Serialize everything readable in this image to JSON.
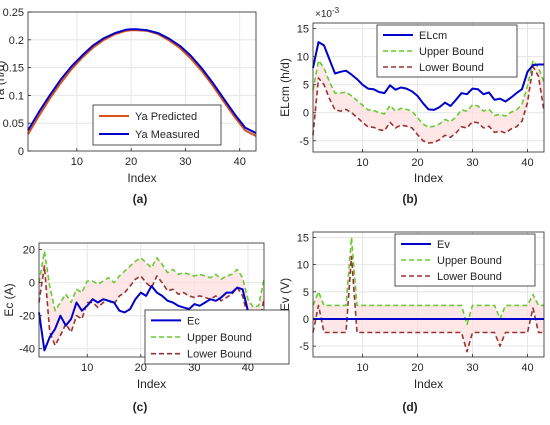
{
  "figure": {
    "colors": {
      "red": "#d95319",
      "blue": "#0000cc",
      "green": "#66cc33",
      "darkred": "#993333",
      "axis": "#262626",
      "grid": "#e6e6e6",
      "fill": "#ffdddd"
    }
  },
  "chart_data": [
    {
      "panel_label": "(a)",
      "type": "line",
      "xlabel": "Index",
      "ylabel": "Ya (h/d)",
      "xlim": [
        1,
        43
      ],
      "ylim": [
        0,
        0.25
      ],
      "xticks": [
        10,
        20,
        30,
        40
      ],
      "yticks": [
        0,
        0.05,
        0.1,
        0.15,
        0.2,
        0.25
      ],
      "ytick_labels": [
        "0",
        "0.05",
        "0.1",
        "0.15",
        "0.2",
        "0.25"
      ],
      "grid": true,
      "legend_position": "bottom-center",
      "x": [
        1,
        3,
        5,
        7,
        9,
        11,
        13,
        15,
        17,
        19,
        20,
        21,
        23,
        25,
        27,
        29,
        31,
        33,
        35,
        37,
        39,
        41,
        43
      ],
      "series": [
        {
          "name": "Ya Predicted",
          "color_key": "red",
          "width": 2,
          "values": [
            0.03,
            0.063,
            0.094,
            0.122,
            0.147,
            0.168,
            0.186,
            0.2,
            0.21,
            0.216,
            0.217,
            0.217,
            0.216,
            0.21,
            0.199,
            0.185,
            0.166,
            0.144,
            0.118,
            0.09,
            0.062,
            0.037,
            0.027
          ]
        },
        {
          "name": "Ya Measured",
          "color_key": "blue",
          "width": 2,
          "values": [
            0.037,
            0.07,
            0.1,
            0.128,
            0.152,
            0.172,
            0.19,
            0.203,
            0.212,
            0.218,
            0.219,
            0.219,
            0.217,
            0.212,
            0.202,
            0.189,
            0.171,
            0.149,
            0.123,
            0.095,
            0.067,
            0.042,
            0.032
          ]
        }
      ]
    },
    {
      "panel_label": "(b)",
      "type": "line",
      "xlabel": "Index",
      "ylabel": "ELcm (h/d)",
      "exponent_label": "×10",
      "exponent_value": "-3",
      "xlim": [
        1,
        43
      ],
      "ylim": [
        -7,
        16
      ],
      "xticks": [
        10,
        20,
        30,
        40
      ],
      "yticks": [
        -5,
        0,
        5,
        10,
        15
      ],
      "grid": true,
      "legend_position": "top-right",
      "x": [
        1,
        2,
        3,
        4,
        5,
        6,
        7,
        8,
        9,
        10,
        11,
        12,
        13,
        14,
        15,
        16,
        17,
        18,
        19,
        20,
        21,
        22,
        23,
        24,
        25,
        26,
        27,
        28,
        29,
        30,
        31,
        32,
        33,
        34,
        35,
        36,
        37,
        38,
        39,
        40,
        41,
        42,
        43
      ],
      "series": [
        {
          "name": "ELcm",
          "color_key": "blue",
          "width": 2,
          "style": "solid",
          "values": [
            8,
            12.6,
            12,
            9.5,
            7,
            7.3,
            7.5,
            6.8,
            6,
            5,
            4.3,
            4.2,
            3.7,
            3.5,
            4.9,
            4.1,
            4.5,
            4.3,
            3.8,
            3,
            1.7,
            0.6,
            0.5,
            1,
            1.8,
            1.2,
            2.3,
            3.5,
            3.3,
            4.3,
            4.2,
            3.3,
            3.6,
            2.3,
            2.5,
            2,
            2.7,
            3.5,
            4.2,
            7.3,
            8.5,
            8.6,
            8.6
          ]
        },
        {
          "name": "Upper Bound",
          "color_key": "green",
          "width": 1.6,
          "style": "dash",
          "values": [
            4,
            9.3,
            8,
            5.5,
            3.5,
            3.5,
            3.7,
            3,
            2.2,
            1.3,
            0.5,
            0.4,
            0,
            -0.2,
            1.3,
            0.3,
            0.8,
            0.6,
            0.3,
            -0.9,
            -2,
            -2.6,
            -2.4,
            -2,
            -1.2,
            -1.6,
            -0.8,
            0.5,
            0.3,
            1.4,
            1.2,
            0.3,
            0.6,
            -0.5,
            -0.3,
            -0.6,
            0.1,
            0.5,
            1.5,
            4.8,
            9.3,
            8,
            5.5
          ]
        },
        {
          "name": "Lower Bound",
          "color_key": "darkred",
          "width": 1.6,
          "style": "dash",
          "values": [
            -4,
            6.2,
            5,
            2.5,
            0.5,
            0.3,
            0.6,
            0,
            -0.8,
            -1.7,
            -2.5,
            -2.6,
            -3,
            -3.2,
            -1.7,
            -2.7,
            -2.2,
            -2.4,
            -2.7,
            -3.9,
            -5,
            -5.4,
            -5.3,
            -4.8,
            -4,
            -4.4,
            -3.6,
            -2.5,
            -2.7,
            -1.6,
            -1.8,
            -2.7,
            -2.4,
            -3.5,
            -3.3,
            -3.6,
            -2.9,
            -2.5,
            -1.5,
            1.8,
            8.2,
            6.5,
            0.3
          ]
        }
      ]
    },
    {
      "panel_label": "(c)",
      "type": "line",
      "xlabel": "Index",
      "ylabel": "Ec (A)",
      "xlim": [
        1,
        43
      ],
      "ylim": [
        -45,
        24
      ],
      "xticks": [
        10,
        20,
        30,
        40
      ],
      "yticks": [
        -40,
        -20,
        0,
        20
      ],
      "grid": true,
      "legend_position": "bottom-center",
      "x": [
        1,
        2,
        3,
        4,
        5,
        6,
        7,
        8,
        9,
        10,
        11,
        12,
        13,
        14,
        15,
        16,
        17,
        18,
        19,
        20,
        21,
        22,
        23,
        24,
        25,
        26,
        27,
        28,
        29,
        30,
        31,
        32,
        33,
        34,
        35,
        36,
        37,
        38,
        39,
        40,
        41,
        42,
        43
      ],
      "series": [
        {
          "name": "Ec",
          "color_key": "blue",
          "width": 2,
          "style": "solid",
          "values": [
            -18,
            -41,
            -33,
            -28,
            -20,
            -26,
            -22,
            -12,
            -17,
            -14,
            -10,
            -12,
            -10,
            -11,
            -12,
            -17,
            -18,
            -16,
            -10,
            -6,
            -8,
            -2,
            -6,
            -8,
            -11,
            -12,
            -14,
            -15,
            -16,
            -13,
            -14,
            -12,
            -10,
            -11,
            -9,
            -6,
            -6,
            -3,
            -4,
            -17,
            -24,
            -26,
            -26
          ]
        },
        {
          "name": "Upper Bound",
          "color_key": "green",
          "width": 1.6,
          "style": "dash",
          "values": [
            0,
            19,
            -2,
            -17,
            -12,
            -7,
            -12,
            -4,
            -6,
            1,
            1,
            -1,
            1,
            3,
            0,
            4,
            7,
            10,
            13,
            15,
            12,
            9,
            15,
            11,
            6,
            8,
            5,
            6,
            5,
            4,
            5,
            4,
            3,
            5,
            2,
            4,
            5,
            8,
            3,
            -10,
            -15,
            -14,
            2
          ]
        },
        {
          "name": "Lower Bound",
          "color_key": "darkred",
          "width": 1.6,
          "style": "dash",
          "values": [
            -12,
            10,
            -30,
            -38,
            -32,
            -25,
            -30,
            -20,
            -22,
            -12,
            -12,
            -15,
            -12,
            -11,
            -13,
            -8,
            -6,
            -2,
            2,
            4,
            0,
            -3,
            4,
            0,
            -5,
            -4,
            -7,
            -6,
            -8,
            -9,
            -8,
            -9,
            -10,
            -8,
            -11,
            -9,
            -7,
            -3,
            -8,
            -21,
            -28,
            -27,
            -10
          ]
        }
      ]
    },
    {
      "panel_label": "(d)",
      "type": "line",
      "xlabel": "Index",
      "ylabel": "Ev (V)",
      "xlim": [
        1,
        43
      ],
      "ylim": [
        -7,
        16
      ],
      "xticks": [
        10,
        20,
        30,
        40
      ],
      "yticks": [
        -5,
        0,
        5,
        10,
        15
      ],
      "grid": true,
      "legend_position": "top-right",
      "x": [
        1,
        2,
        3,
        4,
        5,
        6,
        7,
        8,
        9,
        10,
        11,
        12,
        13,
        14,
        15,
        16,
        17,
        18,
        19,
        20,
        21,
        22,
        23,
        24,
        25,
        26,
        27,
        28,
        29,
        30,
        31,
        32,
        33,
        34,
        35,
        36,
        37,
        38,
        39,
        40,
        41,
        42,
        43
      ],
      "series": [
        {
          "name": "Ev",
          "color_key": "blue",
          "width": 2,
          "style": "solid",
          "values": [
            0,
            0,
            0,
            0,
            0,
            0,
            0,
            0,
            0,
            0,
            0,
            0,
            0,
            0,
            0,
            0,
            0,
            0,
            0,
            0,
            0,
            0,
            0,
            0,
            0,
            0,
            0,
            0,
            0,
            0,
            0,
            0,
            0,
            0,
            0,
            0,
            0,
            0,
            0,
            0,
            0,
            0,
            0
          ]
        },
        {
          "name": "Upper Bound",
          "color_key": "green",
          "width": 1.6,
          "style": "dash",
          "values": [
            2.5,
            5,
            2.5,
            2.5,
            2.5,
            2.5,
            2.5,
            15,
            2.5,
            2.5,
            2.5,
            2.5,
            2.5,
            2.5,
            2.5,
            2.5,
            2.5,
            2.5,
            2.5,
            2.5,
            2.5,
            2.5,
            2.5,
            2.5,
            2.5,
            2.5,
            2.5,
            2.5,
            -1,
            2.5,
            2.5,
            2.5,
            2.5,
            2.5,
            0,
            2.5,
            2.5,
            2.5,
            2.5,
            2.5,
            4.5,
            2.5,
            2.5
          ]
        },
        {
          "name": "Lower Bound",
          "color_key": "darkred",
          "width": 1.6,
          "style": "dash",
          "values": [
            -2.5,
            2.5,
            -2.5,
            -2.5,
            -2.5,
            -2.5,
            -2.5,
            11.5,
            -2.5,
            -2.5,
            -2.5,
            -2.5,
            -2.5,
            -2.5,
            -2.5,
            -2.5,
            -2.5,
            -2.5,
            -2.5,
            -2.5,
            -2.5,
            -2.5,
            -2.5,
            -2.5,
            -2.5,
            -2.5,
            -2.5,
            -2.5,
            -6,
            -2.5,
            -2.5,
            -2.5,
            -2.5,
            -2.5,
            -5,
            -2.5,
            -2.5,
            -2.5,
            -2.5,
            -2.5,
            2,
            -2.5,
            -2.5
          ]
        }
      ]
    }
  ]
}
